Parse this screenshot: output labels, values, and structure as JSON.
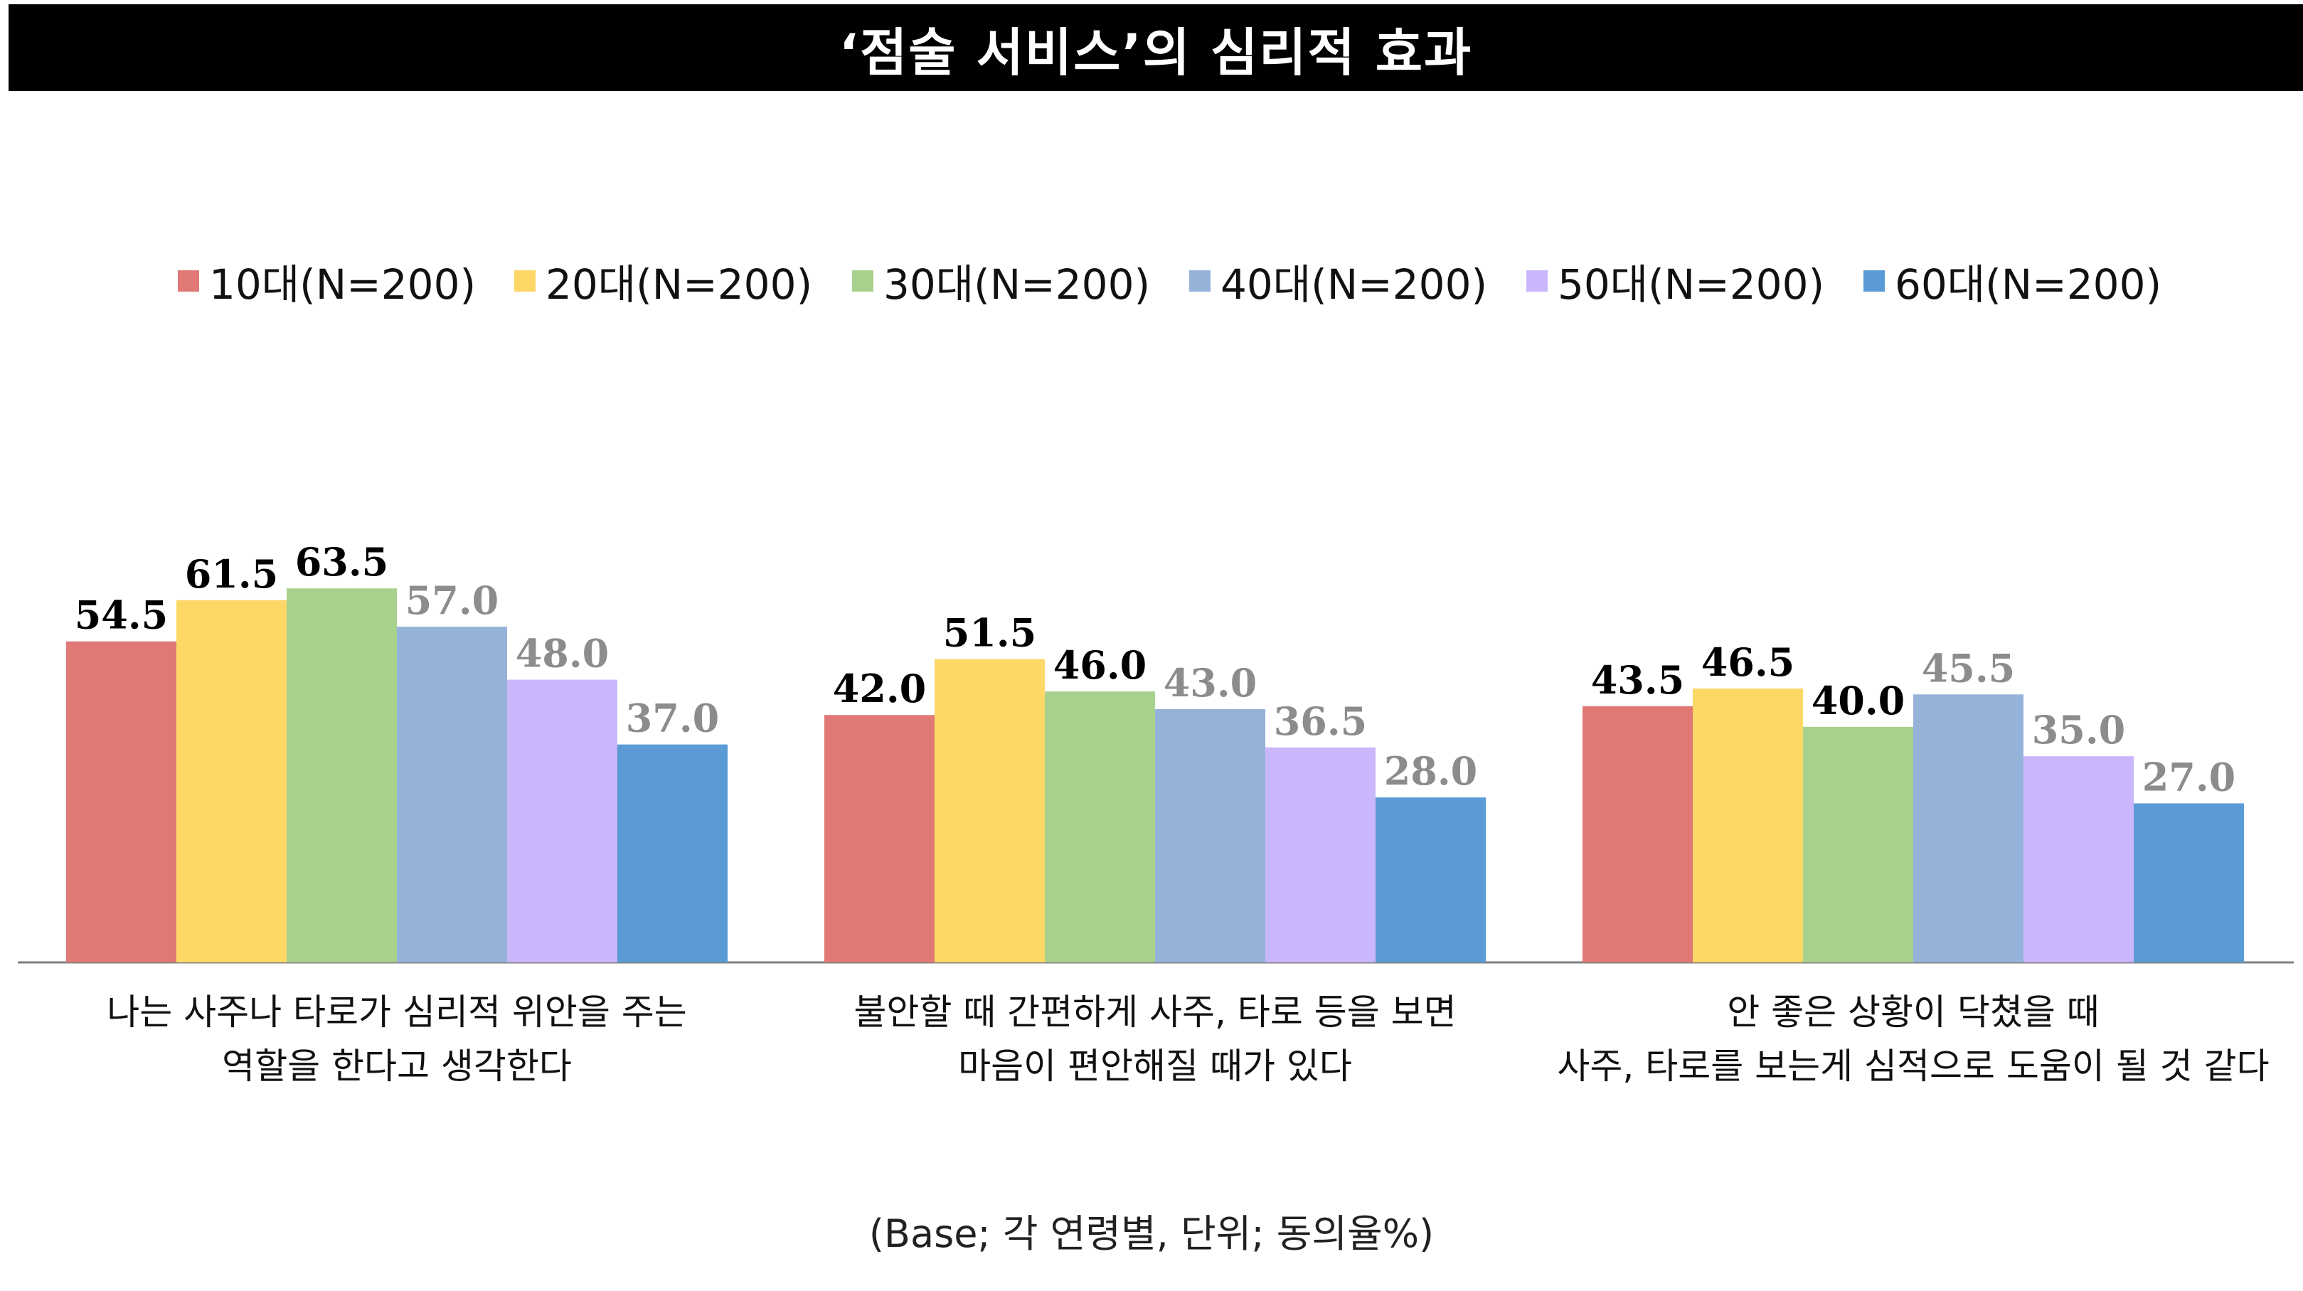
{
  "chart_data": {
    "type": "bar",
    "title": "‘점술 서비스’의 심리적 효과",
    "categories": [
      [
        "나는 사주나 타로가 심리적 위안을 주는",
        "역할을 한다고 생각한다"
      ],
      [
        "불안할 때 간편하게 사주, 타로 등을 보면",
        "마음이 편안해질 때가 있다"
      ],
      [
        "안 좋은 상황이 닥쳤을 때",
        "사주, 타로를 보는게 심적으로 도움이 될 것 같다"
      ]
    ],
    "series": [
      {
        "name": "10대(N=200)",
        "values": [
          54.5,
          42.0,
          43.5
        ],
        "color": "#E07876",
        "label_color": "#000000"
      },
      {
        "name": "20대(N=200)",
        "values": [
          61.5,
          51.5,
          46.5
        ],
        "color": "#FDD866",
        "label_color": "#000000"
      },
      {
        "name": "30대(N=200)",
        "values": [
          63.5,
          46.0,
          40.0
        ],
        "color": "#A8D18D",
        "label_color": "#000000"
      },
      {
        "name": "40대(N=200)",
        "values": [
          57.0,
          43.0,
          45.5
        ],
        "color": "#95B3D9",
        "label_color": "#8C8C8C"
      },
      {
        "name": "50대(N=200)",
        "values": [
          48.0,
          36.5,
          35.0
        ],
        "color": "#C9B6FB",
        "label_color": "#8C8C8C"
      },
      {
        "name": "60대(N=200)",
        "values": [
          37.0,
          28.0,
          27.0
        ],
        "color": "#5B9BD5",
        "label_color": "#8C8C8C"
      }
    ],
    "ylim": [
      0,
      100
    ],
    "grid": false,
    "legend_position": "top"
  },
  "footnote": "(Base; 각 연령별, 단위; 동의율%)"
}
